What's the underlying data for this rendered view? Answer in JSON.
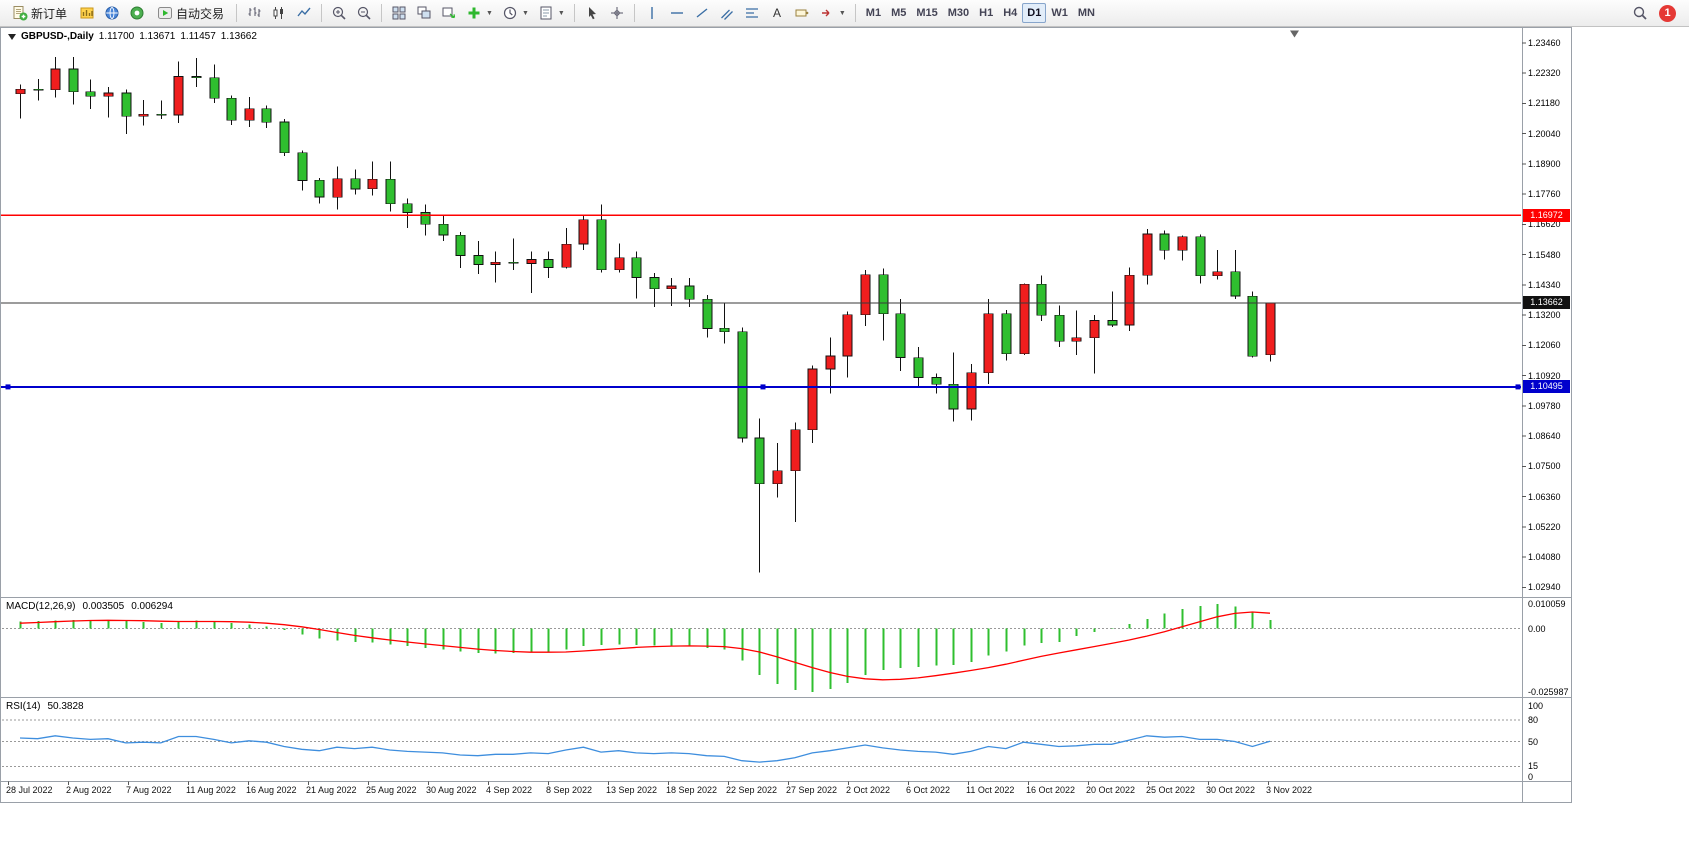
{
  "toolbar": {
    "new_order_label": "新订单",
    "autotrading_label": "自动交易",
    "timeframes": [
      "M1",
      "M5",
      "M15",
      "M30",
      "H1",
      "H4",
      "D1",
      "W1",
      "MN"
    ],
    "active_timeframe": "D1",
    "notification_badge": "1"
  },
  "chart_header": {
    "symbol_period": "GBPUSD-,Daily",
    "open": "1.11700",
    "high": "1.13671",
    "low": "1.11457",
    "close": "1.13662"
  },
  "colors": {
    "bull": "#f01e1e",
    "bear": "#2fbf2f",
    "wick": "#111111",
    "macd_hist": "#2fbf2f",
    "macd_signal": "#ff0000",
    "rsi_line": "#3e8ede",
    "resistance": "#ff0000",
    "current_price": "#3a3a3a",
    "support": "#0000cc"
  },
  "chart_data": {
    "type": "candlestick",
    "symbol": "GBPUSD-",
    "period": "Daily",
    "price_axis": {
      "ticks": [
        "1.23460",
        "1.22320",
        "1.21180",
        "1.20040",
        "1.18900",
        "1.17760",
        "1.16620",
        "1.15480",
        "1.14340",
        "1.13200",
        "1.12060",
        "1.10920",
        "1.09780",
        "1.08640",
        "1.07500",
        "1.06360",
        "1.05220",
        "1.04080",
        "1.02940"
      ]
    },
    "date_axis": {
      "labels": [
        "28 Jul 2022",
        "2 Aug 2022",
        "7 Aug 2022",
        "11 Aug 2022",
        "16 Aug 2022",
        "21 Aug 2022",
        "25 Aug 2022",
        "30 Aug 2022",
        "4 Sep 2022",
        "8 Sep 2022",
        "13 Sep 2022",
        "18 Sep 2022",
        "22 Sep 2022",
        "27 Sep 2022",
        "2 Oct 2022",
        "6 Oct 2022",
        "11 Oct 2022",
        "16 Oct 2022",
        "20 Oct 2022",
        "25 Oct 2022",
        "30 Oct 2022",
        "3 Nov 2022"
      ]
    },
    "hlines": [
      {
        "name": "resistance-line",
        "label": "1.16972",
        "price": 1.16972,
        "color": "#ff0000",
        "selected": false
      },
      {
        "name": "current-price-line",
        "label": "1.13662",
        "price": 1.13662,
        "color": "#3a3a3a",
        "selected": false
      },
      {
        "name": "support-line",
        "label": "1.10495",
        "price": 1.10495,
        "color": "#0000cc",
        "selected": true
      }
    ],
    "candles": [
      [
        "2022.07.28",
        1.2155,
        1.219,
        1.2062,
        1.2172
      ],
      [
        "2022.07.29",
        1.2172,
        1.221,
        1.213,
        1.217
      ],
      [
        "2022.08.01",
        1.217,
        1.2294,
        1.214,
        1.2248
      ],
      [
        "2022.08.02",
        1.2248,
        1.2293,
        1.2115,
        1.2162
      ],
      [
        "2022.08.03",
        1.2162,
        1.2208,
        1.2098,
        1.2145
      ],
      [
        "2022.08.04",
        1.2145,
        1.218,
        1.2065,
        1.2158
      ],
      [
        "2022.08.05",
        1.2158,
        1.217,
        1.2003,
        1.207
      ],
      [
        "2022.08.08",
        1.207,
        1.2131,
        1.2035,
        1.2078
      ],
      [
        "2022.08.09",
        1.2078,
        1.213,
        1.206,
        1.2075
      ],
      [
        "2022.08.10",
        1.2075,
        1.2276,
        1.2045,
        1.222
      ],
      [
        "2022.08.11",
        1.222,
        1.229,
        1.218,
        1.2215
      ],
      [
        "2022.08.12",
        1.2215,
        1.2265,
        1.212,
        1.2138
      ],
      [
        "2022.08.15",
        1.2138,
        1.2149,
        1.2036,
        1.2055
      ],
      [
        "2022.08.16",
        1.2055,
        1.2143,
        1.203,
        1.2098
      ],
      [
        "2022.08.17",
        1.2098,
        1.211,
        1.2025,
        1.2048
      ],
      [
        "2022.08.18",
        1.2048,
        1.206,
        1.192,
        1.1932
      ],
      [
        "2022.08.19",
        1.1932,
        1.194,
        1.179,
        1.1828
      ],
      [
        "2022.08.22",
        1.1828,
        1.1838,
        1.174,
        1.1765
      ],
      [
        "2022.08.23",
        1.1765,
        1.188,
        1.1718,
        1.1834
      ],
      [
        "2022.08.24",
        1.1834,
        1.187,
        1.1775,
        1.1796
      ],
      [
        "2022.08.25",
        1.1796,
        1.19,
        1.1772,
        1.1832
      ],
      [
        "2022.08.26",
        1.1832,
        1.19,
        1.171,
        1.174
      ],
      [
        "2022.08.29",
        1.174,
        1.176,
        1.1649,
        1.1707
      ],
      [
        "2022.08.30",
        1.1707,
        1.1738,
        1.1621,
        1.1662
      ],
      [
        "2022.08.31",
        1.1662,
        1.1694,
        1.16,
        1.1622
      ],
      [
        "2022.09.01",
        1.1622,
        1.1633,
        1.1498,
        1.1545
      ],
      [
        "2022.09.02",
        1.1545,
        1.16,
        1.1475,
        1.1511
      ],
      [
        "2022.09.05",
        1.1511,
        1.156,
        1.1444,
        1.152
      ],
      [
        "2022.09.06",
        1.152,
        1.1609,
        1.149,
        1.1515
      ],
      [
        "2022.09.07",
        1.1515,
        1.156,
        1.1404,
        1.153
      ],
      [
        "2022.09.08",
        1.153,
        1.156,
        1.146,
        1.15
      ],
      [
        "2022.09.09",
        1.15,
        1.1648,
        1.1495,
        1.1588
      ],
      [
        "2022.09.12",
        1.1588,
        1.17,
        1.1565,
        1.168
      ],
      [
        "2022.09.13",
        1.168,
        1.1738,
        1.148,
        1.1491
      ],
      [
        "2022.09.14",
        1.1491,
        1.159,
        1.148,
        1.1536
      ],
      [
        "2022.09.15",
        1.1536,
        1.156,
        1.1382,
        1.1462
      ],
      [
        "2022.09.16",
        1.1462,
        1.1478,
        1.1351,
        1.142
      ],
      [
        "2022.09.19",
        1.142,
        1.146,
        1.1355,
        1.143
      ],
      [
        "2022.09.20",
        1.143,
        1.146,
        1.135,
        1.138
      ],
      [
        "2022.09.21",
        1.138,
        1.1396,
        1.1235,
        1.127
      ],
      [
        "2022.09.22",
        1.127,
        1.1365,
        1.1213,
        1.1258
      ],
      [
        "2022.09.23",
        1.1258,
        1.1273,
        1.084,
        1.0857
      ],
      [
        "2022.09.26",
        1.0857,
        1.093,
        1.035,
        1.0685
      ],
      [
        "2022.09.27",
        1.0685,
        1.0838,
        1.0633,
        1.0734
      ],
      [
        "2022.09.28",
        1.0734,
        1.0916,
        1.054,
        1.0888
      ],
      [
        "2022.09.29",
        1.0888,
        1.113,
        1.0838,
        1.1117
      ],
      [
        "2022.09.30",
        1.1117,
        1.1235,
        1.1025,
        1.1166
      ],
      [
        "2022.10.03",
        1.1166,
        1.1334,
        1.1085,
        1.1322
      ],
      [
        "2022.10.04",
        1.1322,
        1.149,
        1.128,
        1.1473
      ],
      [
        "2022.10.05",
        1.1473,
        1.1495,
        1.1225,
        1.1325
      ],
      [
        "2022.10.06",
        1.1325,
        1.138,
        1.111,
        1.116
      ],
      [
        "2022.10.07",
        1.116,
        1.12,
        1.105,
        1.1085
      ],
      [
        "2022.10.10",
        1.1085,
        1.11,
        1.1025,
        1.106
      ],
      [
        "2022.10.11",
        1.106,
        1.118,
        1.092,
        1.0966
      ],
      [
        "2022.10.12",
        1.0966,
        1.1135,
        1.0923,
        1.1103
      ],
      [
        "2022.10.13",
        1.1103,
        1.138,
        1.106,
        1.1325
      ],
      [
        "2022.10.14",
        1.1325,
        1.134,
        1.115,
        1.1174
      ],
      [
        "2022.10.17",
        1.1174,
        1.144,
        1.117,
        1.1436
      ],
      [
        "2022.10.18",
        1.1436,
        1.147,
        1.1298,
        1.132
      ],
      [
        "2022.10.19",
        1.132,
        1.1357,
        1.12,
        1.1222
      ],
      [
        "2022.10.20",
        1.1222,
        1.1337,
        1.117,
        1.1235
      ],
      [
        "2022.10.21",
        1.1235,
        1.132,
        1.11,
        1.13
      ],
      [
        "2022.10.24",
        1.13,
        1.141,
        1.1275,
        1.1283
      ],
      [
        "2022.10.25",
        1.1283,
        1.15,
        1.126,
        1.147
      ],
      [
        "2022.10.26",
        1.147,
        1.1645,
        1.1435,
        1.1626
      ],
      [
        "2022.10.27",
        1.1626,
        1.164,
        1.153,
        1.1565
      ],
      [
        "2022.10.28",
        1.1565,
        1.162,
        1.1527,
        1.1615
      ],
      [
        "2022.10.31",
        1.1615,
        1.1625,
        1.144,
        1.1468
      ],
      [
        "2022.11.01",
        1.1468,
        1.1565,
        1.1455,
        1.1483
      ],
      [
        "2022.11.02",
        1.1483,
        1.1565,
        1.138,
        1.1392
      ],
      [
        "2022.11.03",
        1.1392,
        1.141,
        1.116,
        1.1165
      ],
      [
        "2022.11.04",
        1.117,
        1.13671,
        1.11457,
        1.13662
      ]
    ],
    "macd": {
      "title": "MACD(12,26,9)",
      "value_main": "0.003505",
      "value_signal": "0.006294",
      "axis_max": "0.010059",
      "axis_zero": "0.00",
      "axis_min": "-0.025987",
      "max": 0.010059,
      "min": -0.025987,
      "histogram": [
        0.0028,
        0.003,
        0.0034,
        0.0036,
        0.0035,
        0.0034,
        0.003,
        0.0026,
        0.0023,
        0.0028,
        0.0032,
        0.003,
        0.0022,
        0.0016,
        0.0008,
        -0.0006,
        -0.0024,
        -0.004,
        -0.0048,
        -0.0055,
        -0.0058,
        -0.0065,
        -0.0072,
        -0.008,
        -0.0086,
        -0.0094,
        -0.01,
        -0.0102,
        -0.01,
        -0.0098,
        -0.0094,
        -0.0085,
        -0.0072,
        -0.0068,
        -0.0065,
        -0.0068,
        -0.007,
        -0.007,
        -0.0072,
        -0.008,
        -0.0086,
        -0.013,
        -0.019,
        -0.0228,
        -0.0252,
        -0.025987,
        -0.0248,
        -0.0224,
        -0.019,
        -0.017,
        -0.0162,
        -0.0158,
        -0.0152,
        -0.015,
        -0.0138,
        -0.011,
        -0.0095,
        -0.007,
        -0.006,
        -0.0055,
        -0.003,
        -0.0015,
        0.0002,
        0.0018,
        0.004,
        0.0062,
        0.008,
        0.0092,
        0.010059,
        0.009,
        0.0065,
        0.003505
      ],
      "signal": [
        0.0022,
        0.0025,
        0.0028,
        0.0031,
        0.0033,
        0.0034,
        0.0033,
        0.0032,
        0.003,
        0.0029,
        0.0029,
        0.0029,
        0.0028,
        0.0026,
        0.0022,
        0.0016,
        0.0007,
        -0.0004,
        -0.0016,
        -0.0028,
        -0.0038,
        -0.0047,
        -0.0055,
        -0.0063,
        -0.007,
        -0.0077,
        -0.0084,
        -0.009,
        -0.0094,
        -0.0097,
        -0.0097,
        -0.0096,
        -0.0092,
        -0.0087,
        -0.0082,
        -0.0077,
        -0.0074,
        -0.0072,
        -0.0071,
        -0.0072,
        -0.0074,
        -0.0082,
        -0.0096,
        -0.0116,
        -0.0138,
        -0.016,
        -0.018,
        -0.0196,
        -0.0206,
        -0.021,
        -0.0208,
        -0.0202,
        -0.0193,
        -0.0183,
        -0.0172,
        -0.016,
        -0.0146,
        -0.013,
        -0.0114,
        -0.01,
        -0.0087,
        -0.0074,
        -0.0061,
        -0.0047,
        -0.0031,
        -0.0013,
        0.0007,
        0.0028,
        0.0048,
        0.0062,
        0.0068,
        0.006294
      ]
    },
    "rsi": {
      "title": "RSI(14)",
      "value": "50.3828",
      "axis_labels": [
        "100",
        "80",
        "50",
        "15",
        "0"
      ],
      "levels": [
        80,
        50,
        15
      ],
      "values": [
        55,
        54,
        58,
        55,
        53,
        54,
        48,
        49,
        48,
        57,
        57,
        53,
        48,
        51,
        49,
        43,
        39,
        37,
        42,
        40,
        42,
        38,
        36,
        35,
        34,
        31,
        30,
        32,
        32,
        34,
        33,
        38,
        42,
        35,
        37,
        34,
        33,
        34,
        33,
        30,
        29,
        23,
        21,
        23,
        27,
        34,
        37,
        41,
        45,
        41,
        38,
        36,
        35,
        32,
        36,
        43,
        40,
        49,
        46,
        43,
        44,
        46,
        46,
        52,
        58,
        56,
        57,
        53,
        53,
        50,
        43,
        50.3828
      ]
    }
  }
}
